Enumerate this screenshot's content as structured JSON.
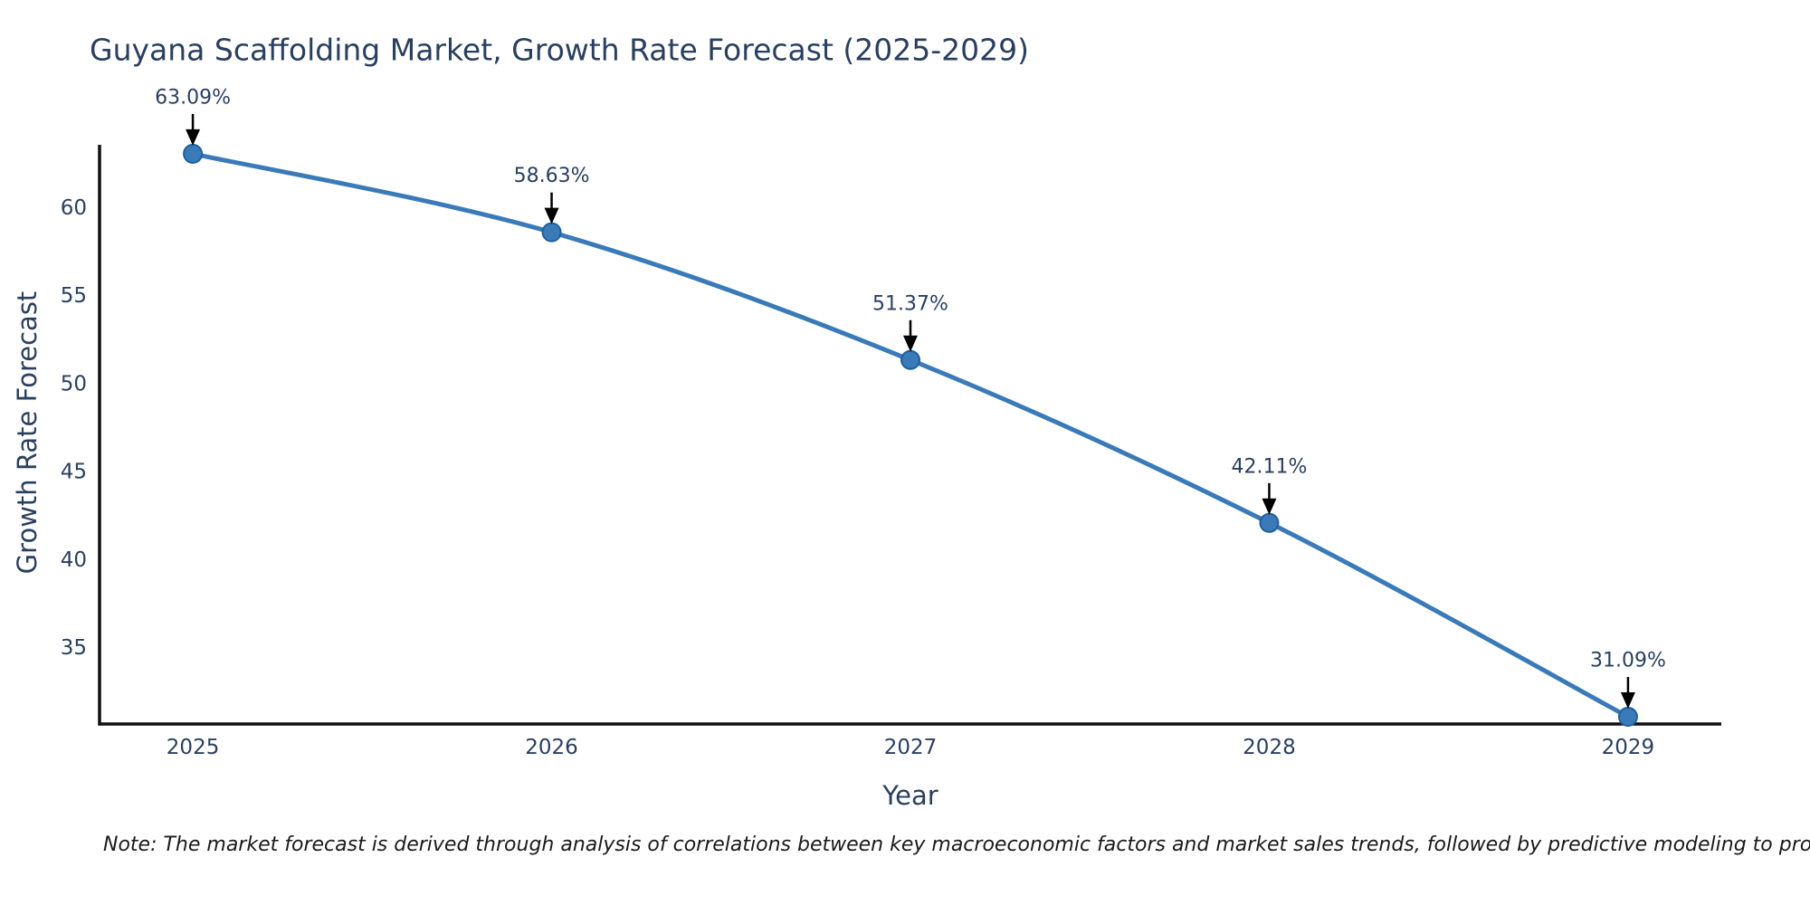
{
  "chart_data": {
    "type": "line",
    "title": "Guyana Scaffolding Market, Growth Rate Forecast (2025-2029)",
    "xlabel": "Year",
    "ylabel": "Growth Rate Forecast",
    "x": [
      2025,
      2026,
      2027,
      2028,
      2029
    ],
    "values": [
      63.09,
      58.63,
      51.37,
      42.11,
      31.09
    ],
    "point_labels": [
      "63.09%",
      "58.63%",
      "51.37%",
      "42.11%",
      "31.09%"
    ],
    "yticks": [
      35,
      40,
      45,
      50,
      55,
      60
    ],
    "xticks": [
      2025,
      2026,
      2027,
      2028,
      2029
    ],
    "xlim": [
      2024.74,
      2029.26
    ],
    "ylim": [
      30.68,
      63.6
    ],
    "grid": false,
    "line_shape": "spline",
    "legend": "none",
    "note": "Note: The market forecast is derived through analysis of correlations between key macroeconomic factors and market sales trends, followed by predictive modeling to project future sales",
    "colors": {
      "line": "#3a7ab8",
      "marker_fill": "#3a7ab8",
      "marker_edge": "#1f5f9e",
      "axis_line": "#111111",
      "text": "#2a3f5f",
      "annotation_arrow": "#000000",
      "background": "#ffffff"
    }
  }
}
